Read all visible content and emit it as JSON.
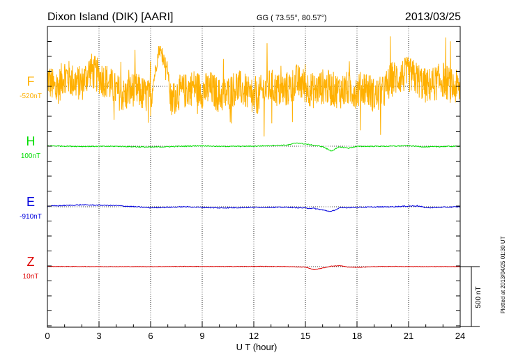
{
  "chart_data": {
    "type": "line",
    "title": "Dixon Island (DIK)  [AARI]",
    "coords": "GG ( 73.55°,  80.57°)",
    "date": "2013/03/25",
    "xlabel": "U T (hour)",
    "xlim": [
      0,
      24
    ],
    "xticks": [
      0,
      3,
      6,
      9,
      12,
      15,
      18,
      21,
      24
    ],
    "scale_label": "500 nT",
    "plotted_note": "Plotted at 2013/04/25 01:30 UT",
    "grid": "dotted vertical every 3 hours",
    "series": [
      {
        "name": "F",
        "baseline_label": "-520nT",
        "color": "#ffb000",
        "baseline_nT": -520,
        "noise_nT": 150,
        "points": [
          [
            0,
            -450
          ],
          [
            0.5,
            -560
          ],
          [
            1,
            -420
          ],
          [
            1.5,
            -480
          ],
          [
            2,
            -500
          ],
          [
            2.5,
            -380
          ],
          [
            3,
            -440
          ],
          [
            3.5,
            -480
          ],
          [
            4,
            -560
          ],
          [
            4.5,
            -600
          ],
          [
            5,
            -540
          ],
          [
            5.5,
            -580
          ],
          [
            6,
            -620
          ],
          [
            6.5,
            -200
          ],
          [
            7,
            -380
          ],
          [
            7.2,
            -680
          ],
          [
            7.5,
            -580
          ],
          [
            8,
            -560
          ],
          [
            8.5,
            -520
          ],
          [
            9,
            -560
          ],
          [
            9.5,
            -540
          ],
          [
            10,
            -600
          ],
          [
            10.5,
            -580
          ],
          [
            11,
            -520
          ],
          [
            11.5,
            -560
          ],
          [
            12,
            -640
          ],
          [
            12.5,
            -560
          ],
          [
            13,
            -520
          ],
          [
            13.5,
            -560
          ],
          [
            14,
            -540
          ],
          [
            14.5,
            -480
          ],
          [
            15,
            -520
          ],
          [
            15.5,
            -560
          ],
          [
            16,
            -520
          ],
          [
            16.5,
            -540
          ],
          [
            17,
            -560
          ],
          [
            17.5,
            -540
          ],
          [
            18,
            -560
          ],
          [
            18.5,
            -520
          ],
          [
            19,
            -600
          ],
          [
            19.5,
            -580
          ],
          [
            20,
            -460
          ],
          [
            20.5,
            -440
          ],
          [
            21,
            -420
          ],
          [
            21.5,
            -460
          ],
          [
            22,
            -520
          ],
          [
            22.5,
            -500
          ],
          [
            23,
            -460
          ],
          [
            23.5,
            -520
          ],
          [
            24,
            -540
          ]
        ]
      },
      {
        "name": "H",
        "baseline_label": "100nT",
        "color": "#00dd00",
        "baseline_nT": 100,
        "noise_nT": 4,
        "points": [
          [
            0,
            103
          ],
          [
            2,
            98
          ],
          [
            4,
            99
          ],
          [
            6,
            92
          ],
          [
            8,
            100
          ],
          [
            9,
            104
          ],
          [
            10,
            98
          ],
          [
            12,
            100
          ],
          [
            14,
            110
          ],
          [
            14.5,
            128
          ],
          [
            15,
            118
          ],
          [
            16,
            96
          ],
          [
            16.5,
            60
          ],
          [
            17,
            94
          ],
          [
            17.5,
            84
          ],
          [
            18,
            98
          ],
          [
            20,
            100
          ],
          [
            21,
            104
          ],
          [
            22,
            94
          ],
          [
            24,
            100
          ]
        ]
      },
      {
        "name": "E",
        "baseline_label": "-910nT",
        "color": "#0000dd",
        "baseline_nT": -910,
        "noise_nT": 4,
        "points": [
          [
            0,
            -905
          ],
          [
            2,
            -894
          ],
          [
            4,
            -900
          ],
          [
            6,
            -918
          ],
          [
            8,
            -910
          ],
          [
            10,
            -920
          ],
          [
            12,
            -915
          ],
          [
            14,
            -914
          ],
          [
            15.5,
            -924
          ],
          [
            16.5,
            -950
          ],
          [
            17,
            -920
          ],
          [
            18,
            -914
          ],
          [
            20,
            -910
          ],
          [
            21.5,
            -902
          ],
          [
            22,
            -918
          ],
          [
            24,
            -910
          ]
        ]
      },
      {
        "name": "Z",
        "baseline_label": "10nT",
        "color": "#dd0000",
        "baseline_nT": 10,
        "noise_nT": 2,
        "points": [
          [
            0,
            12
          ],
          [
            2,
            11
          ],
          [
            4,
            10
          ],
          [
            6,
            10
          ],
          [
            8,
            12
          ],
          [
            10,
            11
          ],
          [
            12,
            12
          ],
          [
            13,
            12
          ],
          [
            14,
            10
          ],
          [
            15,
            6
          ],
          [
            15.5,
            -16
          ],
          [
            16,
            -2
          ],
          [
            16.5,
            14
          ],
          [
            17,
            18
          ],
          [
            17.5,
            6
          ],
          [
            18,
            4
          ],
          [
            19,
            10
          ],
          [
            20,
            12
          ],
          [
            22,
            10
          ],
          [
            24,
            10
          ]
        ]
      }
    ]
  }
}
